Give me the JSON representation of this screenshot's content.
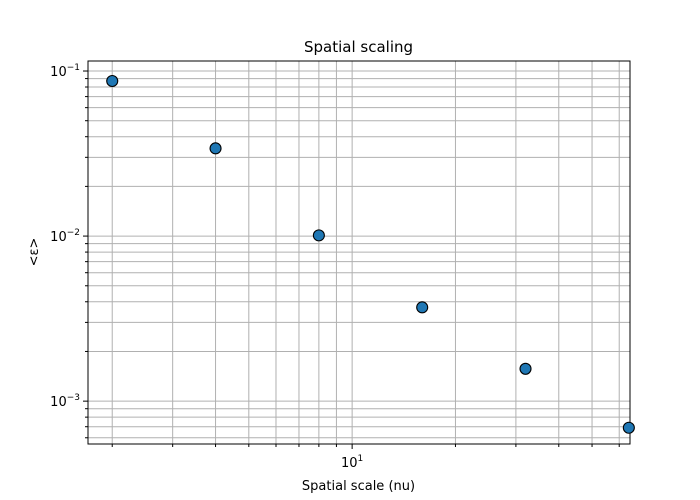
{
  "chart_data": {
    "type": "scatter",
    "title": "Spatial scaling",
    "xlabel": "Spatial scale (nu)",
    "ylabel": "<ε>",
    "x_scale": "log",
    "y_scale": "log",
    "xlim": [
      1.7,
      64.5
    ],
    "ylim": [
      0.00055,
      0.115
    ],
    "x_ticks": [
      {
        "value": 10,
        "label": "10",
        "exponent": "1"
      }
    ],
    "y_ticks": [
      {
        "value": 0.001,
        "label": "10",
        "exponent": "−3"
      },
      {
        "value": 0.01,
        "label": "10",
        "exponent": "−2"
      },
      {
        "value": 0.1,
        "label": "10",
        "exponent": "−1"
      }
    ],
    "grid": "both, major and minor",
    "legend": "none",
    "marker_color": "#1f77b4",
    "marker_edge_color": "#000000",
    "points": [
      {
        "x": 2,
        "y": 0.087
      },
      {
        "x": 4,
        "y": 0.034
      },
      {
        "x": 8,
        "y": 0.0101
      },
      {
        "x": 16,
        "y": 0.0037
      },
      {
        "x": 32,
        "y": 0.00157
      },
      {
        "x": 64,
        "y": 0.00069
      }
    ]
  }
}
